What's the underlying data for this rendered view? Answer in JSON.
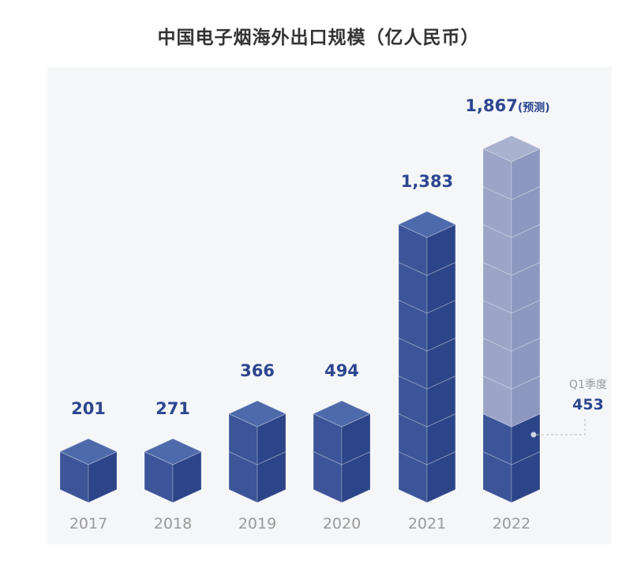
{
  "title": "中国电子烟海外出口规模（亿人民币）",
  "chart_data": {
    "type": "bar",
    "title": "中国电子烟海外出口规模（亿人民币）",
    "categories": [
      "2017",
      "2018",
      "2019",
      "2020",
      "2021",
      "2022"
    ],
    "values": [
      201,
      271,
      366,
      494,
      1383,
      1867
    ],
    "value_labels": [
      "201",
      "271",
      "366",
      "494",
      "1,383",
      "1,867"
    ],
    "value_suffixes": [
      "",
      "",
      "",
      "",
      "",
      "(预测)"
    ],
    "forecast_category": "2022",
    "highlight": {
      "category": "2022",
      "label": "Q1季度",
      "value": 453,
      "value_label": "453"
    },
    "grid": false,
    "legend": "none",
    "colors": {
      "top": "#4d6aaa",
      "left": "#3c5598",
      "right": "#2c4488",
      "forecast_top": "#a9b2cf",
      "forecast_left": "#9ca4c8",
      "forecast_right": "#8e97c0",
      "value_text": "#2c4690",
      "axis_text": "#999999"
    }
  }
}
